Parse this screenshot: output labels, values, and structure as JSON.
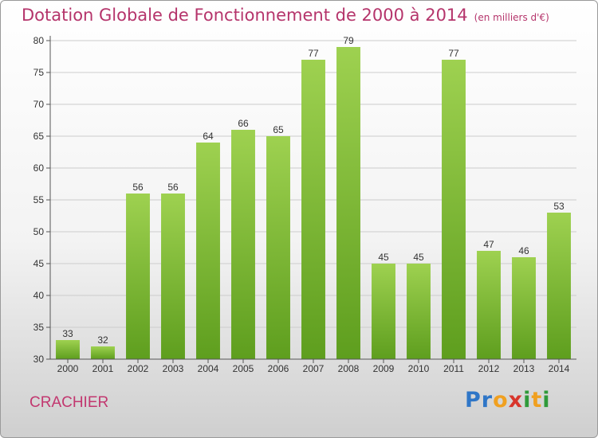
{
  "page": {
    "title": "Dotation Globale de Fonctionnement de 2000 à 2014",
    "unit": "(en milliers d'€)",
    "commune": "CRACHIER",
    "logo": "Proxiti"
  },
  "colors": {
    "title": "#b5346b",
    "bar_top": "#9ed150",
    "bar_bottom": "#5e9e1e",
    "grid": "#cccccc"
  },
  "chart_data": {
    "type": "bar",
    "title": "Dotation Globale de Fonctionnement de 2000 à 2014",
    "subtitle": "(en milliers d'€)",
    "xlabel": "",
    "ylabel": "",
    "categories": [
      "2000",
      "2001",
      "2002",
      "2003",
      "2004",
      "2005",
      "2006",
      "2007",
      "2008",
      "2009",
      "2010",
      "2011",
      "2012",
      "2013",
      "2014"
    ],
    "values": [
      33,
      32,
      56,
      56,
      64,
      66,
      65,
      77,
      79,
      45,
      45,
      77,
      47,
      46,
      53
    ],
    "ylim": [
      30,
      80
    ],
    "yticks": [
      30,
      35,
      40,
      45,
      50,
      55,
      60,
      65,
      70,
      75,
      80
    ],
    "grid": true,
    "data_labels": true
  }
}
